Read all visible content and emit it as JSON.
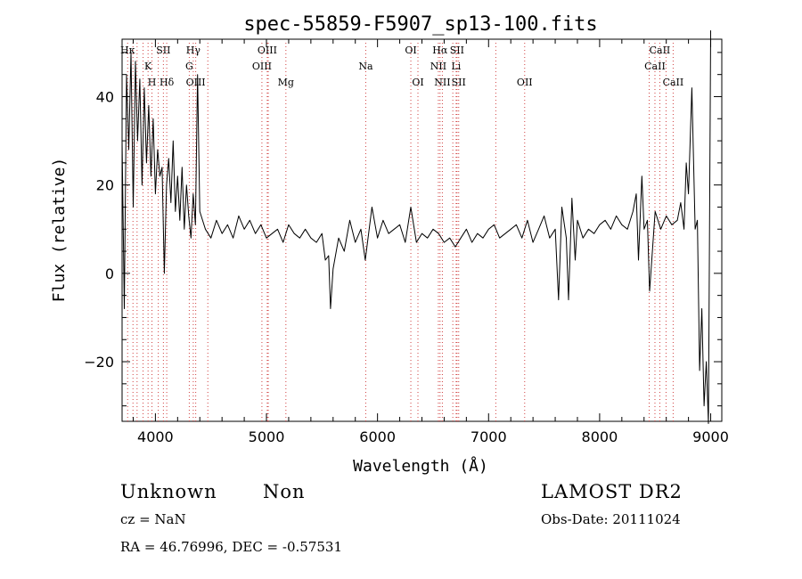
{
  "chart_data": {
    "type": "line",
    "title": "spec-55859-F5907_sp13-100.fits",
    "xlabel": "Wavelength (Å)",
    "ylabel": "Flux (relative)",
    "xlim": [
      3700,
      9100
    ],
    "ylim": [
      -33.5,
      53
    ],
    "x_ticks": [
      4000,
      5000,
      6000,
      7000,
      8000,
      9000
    ],
    "x_tick_labels": [
      "4000",
      "5000",
      "6000",
      "7000",
      "8000",
      "9000"
    ],
    "y_ticks": [
      -20,
      0,
      20,
      40
    ],
    "y_tick_labels": [
      "−20",
      "0",
      "20",
      "40"
    ],
    "grid": false,
    "legend": "none",
    "series": [
      {
        "x": [
          3700,
          3720,
          3740,
          3760,
          3780,
          3800,
          3820,
          3840,
          3860,
          3880,
          3900,
          3920,
          3940,
          3960,
          3980,
          4000,
          4020,
          4040,
          4060,
          4080,
          4100,
          4120,
          4140,
          4160,
          4180,
          4200,
          4220,
          4240,
          4260,
          4280,
          4300,
          4320,
          4340,
          4360,
          4380,
          4400,
          4450,
          4500,
          4550,
          4600,
          4650,
          4700,
          4750,
          4800,
          4850,
          4900,
          4950,
          5000,
          5050,
          5100,
          5150,
          5200,
          5250,
          5300,
          5350,
          5400,
          5450,
          5500,
          5530,
          5560,
          5577,
          5600,
          5650,
          5700,
          5750,
          5800,
          5850,
          5890,
          5950,
          6000,
          6050,
          6100,
          6150,
          6200,
          6250,
          6300,
          6350,
          6400,
          6450,
          6500,
          6550,
          6600,
          6650,
          6700,
          6750,
          6800,
          6850,
          6900,
          6950,
          7000,
          7050,
          7100,
          7150,
          7200,
          7250,
          7300,
          7350,
          7400,
          7450,
          7500,
          7550,
          7600,
          7630,
          7660,
          7700,
          7720,
          7750,
          7780,
          7800,
          7850,
          7900,
          7950,
          8000,
          8050,
          8100,
          8150,
          8200,
          8250,
          8300,
          8330,
          8350,
          8380,
          8400,
          8430,
          8450,
          8500,
          8550,
          8600,
          8650,
          8700,
          8730,
          8760,
          8780,
          8800,
          8830,
          8860,
          8880,
          8900,
          8920,
          8940,
          8960,
          8980,
          9000
        ],
        "y": [
          30,
          -8,
          45,
          28,
          50,
          15,
          48,
          30,
          44,
          20,
          42,
          25,
          38,
          22,
          35,
          18,
          28,
          22,
          24,
          0,
          20,
          26,
          16,
          30,
          14,
          22,
          12,
          24,
          10,
          20,
          13,
          8,
          18,
          11,
          45,
          14,
          10,
          8,
          12,
          9,
          11,
          8,
          13,
          10,
          12,
          9,
          11,
          8,
          9,
          10,
          7,
          11,
          9,
          8,
          10,
          8,
          7,
          9,
          3,
          4,
          -8,
          1,
          8,
          5,
          12,
          7,
          10,
          3,
          15,
          8,
          12,
          9,
          10,
          11,
          7,
          15,
          7,
          9,
          8,
          10,
          9,
          7,
          8,
          6,
          8,
          10,
          7,
          9,
          8,
          10,
          11,
          8,
          9,
          10,
          11,
          8,
          12,
          7,
          10,
          13,
          8,
          10,
          -6,
          15,
          8,
          -6,
          17,
          3,
          12,
          8,
          10,
          9,
          11,
          12,
          10,
          13,
          11,
          10,
          14,
          18,
          3,
          22,
          10,
          12,
          -4,
          14,
          10,
          13,
          11,
          12,
          16,
          10,
          25,
          18,
          42,
          10,
          12,
          -22,
          -8,
          -30,
          -20,
          -34,
          55
        ]
      }
    ],
    "lines": [
      {
        "label": "Hκ",
        "x": 3750,
        "row": 0
      },
      {
        "label": "K",
        "x": 3934,
        "row": 1
      },
      {
        "label": "H",
        "x": 3969,
        "row": 2
      },
      {
        "label": "SII",
        "x": 4072,
        "row": 0
      },
      {
        "label": "Hδ",
        "x": 4102,
        "row": 2
      },
      {
        "label": "Hγ",
        "x": 4341,
        "row": 0
      },
      {
        "label": "G",
        "x": 4305,
        "row": 1
      },
      {
        "label": "OIII",
        "x": 4363,
        "row": 2
      },
      {
        "label": "OIII",
        "x": 5007,
        "row": 0
      },
      {
        "label": "OIII",
        "x": 4959,
        "row": 1
      },
      {
        "label": "Mg",
        "x": 5175,
        "row": 2
      },
      {
        "label": "Na",
        "x": 5894,
        "row": 1
      },
      {
        "label": "OI",
        "x": 6300,
        "row": 0
      },
      {
        "label": "OI",
        "x": 6364,
        "row": 2
      },
      {
        "label": "Hα",
        "x": 6563,
        "row": 0
      },
      {
        "label": "SII",
        "x": 6716,
        "row": 0
      },
      {
        "label": "NII",
        "x": 6548,
        "row": 1
      },
      {
        "label": "Li",
        "x": 6708,
        "row": 1
      },
      {
        "label": "NII",
        "x": 6584,
        "row": 2
      },
      {
        "label": "SII",
        "x": 6731,
        "row": 2
      },
      {
        "label": "OII",
        "x": 7325,
        "row": 2
      },
      {
        "label": "CaII",
        "x": 8542,
        "row": 0
      },
      {
        "label": "CaII",
        "x": 8498,
        "row": 1
      },
      {
        "label": "CaII",
        "x": 8662,
        "row": 2
      }
    ],
    "extra_dotted_x": [
      3798,
      3835,
      3889,
      4026,
      4472,
      5016,
      6678,
      7065,
      8446,
      8598
    ],
    "line_color": "#000000",
    "marker_color": "#d04040"
  },
  "info": {
    "class": "Unknown",
    "subclass": "Non",
    "survey": "LAMOST DR2",
    "cz": "cz = NaN",
    "obs_date": "Obs-Date: 20111024",
    "coords": "RA =  46.76996, DEC =  -0.57531"
  }
}
